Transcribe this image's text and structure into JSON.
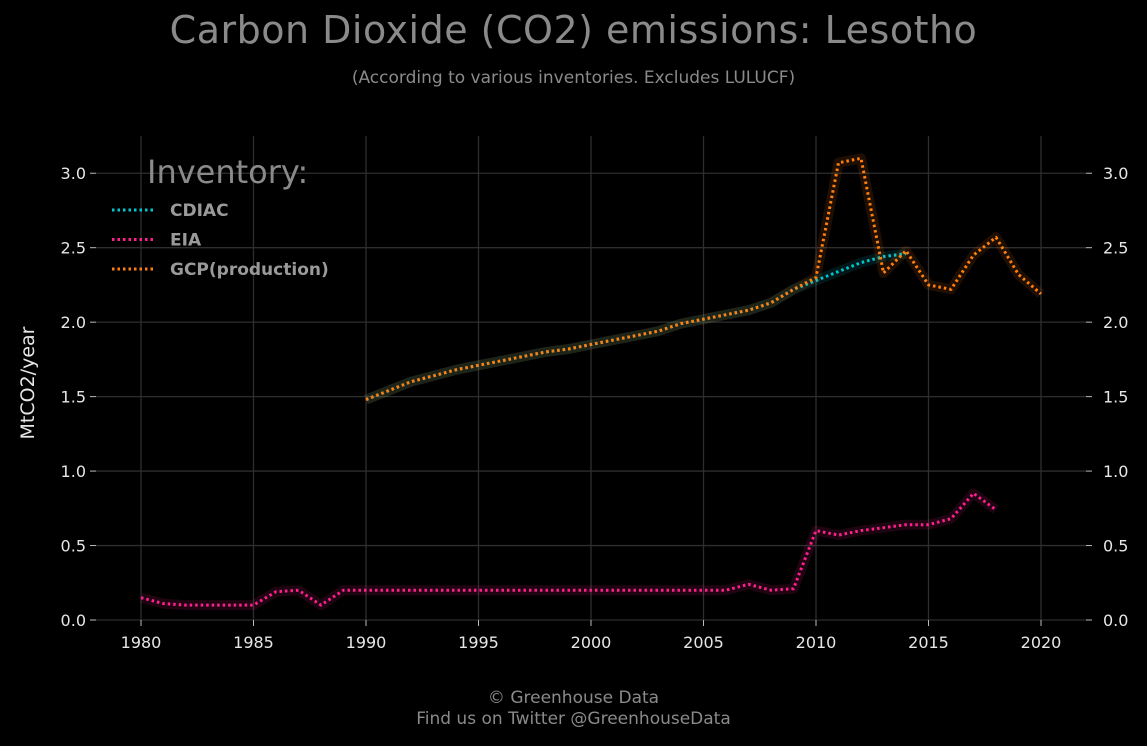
{
  "title": "Carbon Dioxide (CO2) emissions: Lesotho",
  "subtitle": "(According to various inventories. Excludes LULUCF)",
  "footer": {
    "line1": "© Greenhouse Data",
    "line2": "Find us on Twitter @GreenhouseData"
  },
  "colors": {
    "background": "#000000",
    "grid": "#2e2e2e",
    "text": "#e6e6e6",
    "muted": "#8a8a8a"
  },
  "chart_data": {
    "type": "line",
    "title": "Carbon Dioxide (CO2) emissions: Lesotho",
    "subtitle": "(According to various inventories. Excludes LULUCF)",
    "xlabel": "",
    "ylabel": "MtCO2/year",
    "xlim": [
      1978,
      2022
    ],
    "ylim": [
      0,
      3.25
    ],
    "xticks": [
      1980,
      1985,
      1990,
      1995,
      2000,
      2005,
      2010,
      2015,
      2020
    ],
    "yticks": [
      0,
      0.5,
      1,
      1.5,
      2,
      2.5,
      3
    ],
    "ytick_labels": [
      "0.0",
      "0.5",
      "1.0",
      "1.5",
      "2.0",
      "2.5",
      "3.0"
    ],
    "grid": true,
    "right_axis": true,
    "legend": {
      "title": "Inventory:",
      "position": "top-left"
    },
    "series": [
      {
        "name": "CDIAC",
        "color": "#00c8d2",
        "x": [
          1990,
          1991,
          1992,
          1993,
          1994,
          1995,
          1996,
          1997,
          1998,
          1999,
          2000,
          2001,
          2002,
          2003,
          2004,
          2005,
          2006,
          2007,
          2008,
          2009,
          2010,
          2011,
          2012,
          2013,
          2014
        ],
        "y": [
          1.48,
          1.54,
          1.6,
          1.64,
          1.68,
          1.71,
          1.74,
          1.77,
          1.8,
          1.82,
          1.85,
          1.88,
          1.91,
          1.94,
          1.99,
          2.02,
          2.05,
          2.08,
          2.13,
          2.22,
          2.28,
          2.34,
          2.4,
          2.44,
          2.46
        ]
      },
      {
        "name": "EIA",
        "color": "#ff1f8e",
        "x": [
          1980,
          1981,
          1982,
          1983,
          1984,
          1985,
          1986,
          1987,
          1988,
          1989,
          1990,
          1991,
          1992,
          1993,
          1994,
          1995,
          1996,
          1997,
          1998,
          1999,
          2000,
          2001,
          2002,
          2003,
          2004,
          2005,
          2006,
          2007,
          2008,
          2009,
          2010,
          2011,
          2012,
          2013,
          2014,
          2015,
          2016,
          2017,
          2018
        ],
        "y": [
          0.15,
          0.11,
          0.1,
          0.1,
          0.1,
          0.1,
          0.19,
          0.2,
          0.1,
          0.2,
          0.2,
          0.2,
          0.2,
          0.2,
          0.2,
          0.2,
          0.2,
          0.2,
          0.2,
          0.2,
          0.2,
          0.2,
          0.2,
          0.2,
          0.2,
          0.2,
          0.2,
          0.24,
          0.2,
          0.21,
          0.6,
          0.57,
          0.6,
          0.62,
          0.64,
          0.64,
          0.68,
          0.85,
          0.74
        ]
      },
      {
        "name": "GCP(production)",
        "color": "#ff7f0e",
        "x": [
          1990,
          1991,
          1992,
          1993,
          1994,
          1995,
          1996,
          1997,
          1998,
          1999,
          2000,
          2001,
          2002,
          2003,
          2004,
          2005,
          2006,
          2007,
          2008,
          2009,
          2010,
          2011,
          2012,
          2013,
          2014,
          2015,
          2016,
          2017,
          2018,
          2019,
          2020
        ],
        "y": [
          1.48,
          1.54,
          1.6,
          1.64,
          1.68,
          1.71,
          1.74,
          1.77,
          1.8,
          1.82,
          1.85,
          1.88,
          1.91,
          1.94,
          1.99,
          2.02,
          2.05,
          2.08,
          2.13,
          2.22,
          2.3,
          3.07,
          3.1,
          2.33,
          2.48,
          2.25,
          2.22,
          2.45,
          2.57,
          2.32,
          2.19
        ]
      }
    ]
  }
}
